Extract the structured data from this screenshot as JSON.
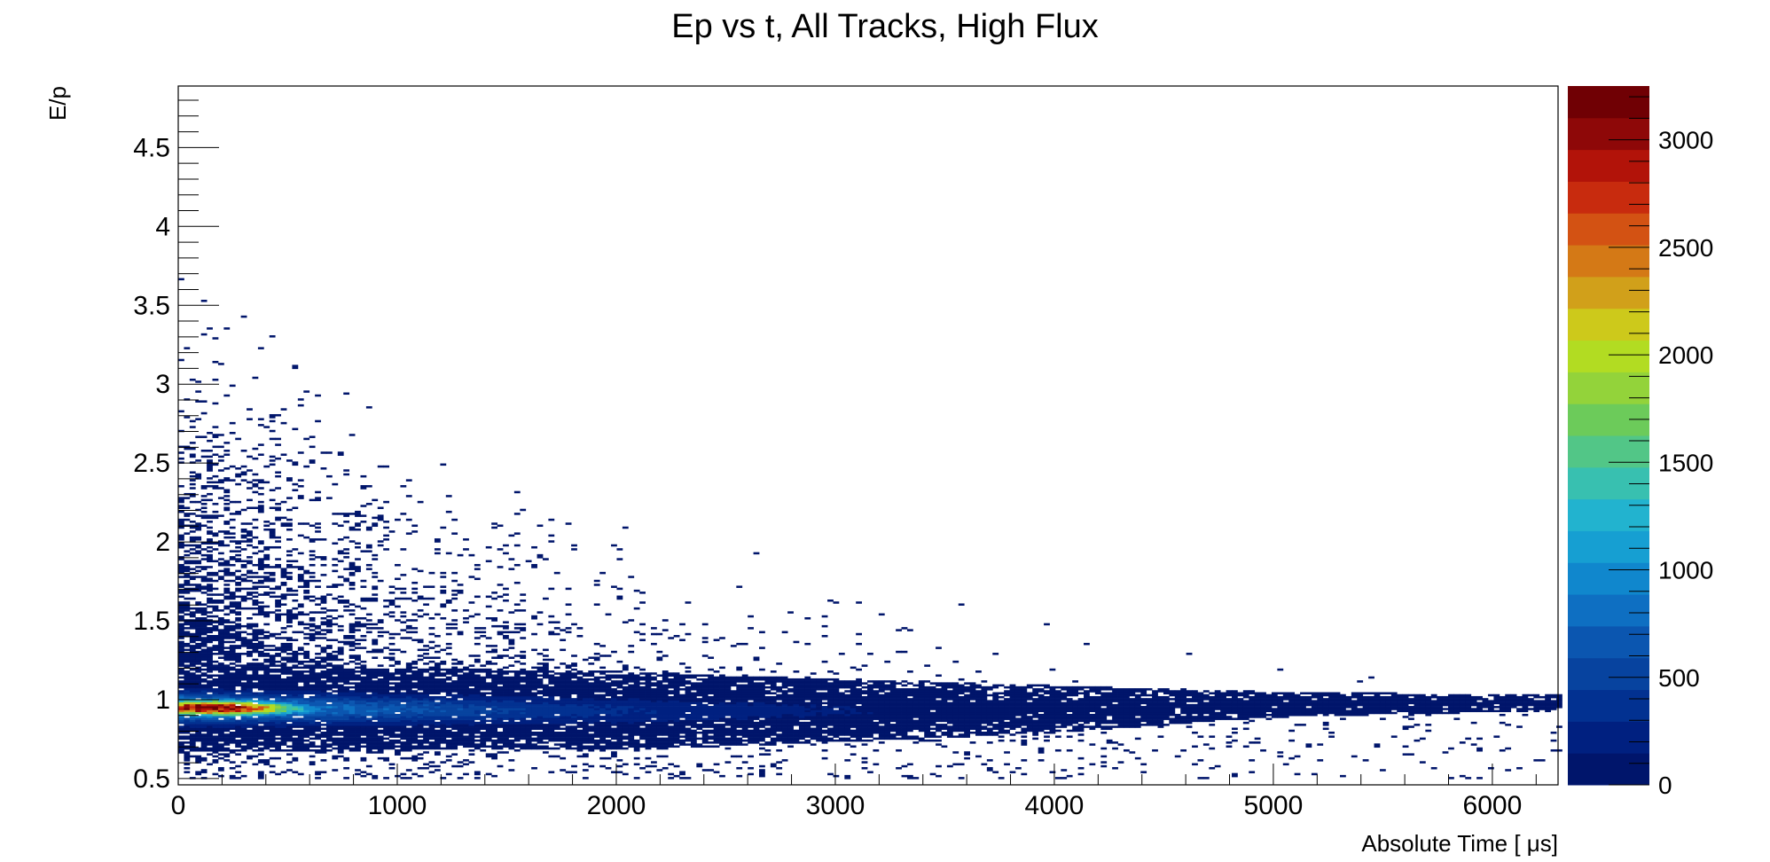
{
  "chart_data": {
    "type": "heatmap",
    "title": "Ep vs t, All Tracks, High Flux",
    "xlabel": "Absolute Time [ μs]",
    "ylabel": "E/p",
    "xlim": [
      0,
      6300
    ],
    "ylim": [
      0.46,
      4.89
    ],
    "x_ticks": [
      0,
      1000,
      2000,
      3000,
      4000,
      5000,
      6000
    ],
    "y_ticks": [
      0.5,
      1,
      1.5,
      2,
      2.5,
      3,
      3.5,
      4,
      4.5
    ],
    "z_range": [
      0,
      3250
    ],
    "z_ticks": [
      0,
      500,
      1000,
      1500,
      2000,
      2500,
      3000
    ],
    "palette": [
      "#00156b",
      "#002080",
      "#023191",
      "#07439f",
      "#0b56b0",
      "#0e6fc2",
      "#1087cd",
      "#169fd2",
      "#22b3cf",
      "#38c0b0",
      "#52c687",
      "#6ccb5a",
      "#93d33a",
      "#b2dc22",
      "#cdc91b",
      "#d1a01a",
      "#d47916",
      "#d35213",
      "#c82b0e",
      "#b21309",
      "#8e0808",
      "#700004"
    ],
    "ridge": {
      "band_center": [
        [
          0,
          0.95
        ],
        [
          1000,
          0.94
        ],
        [
          2000,
          0.93
        ],
        [
          3000,
          0.93
        ],
        [
          4000,
          0.94
        ],
        [
          5000,
          0.97
        ],
        [
          6300,
          0.98
        ]
      ],
      "band_half_width": [
        [
          0,
          0.28
        ],
        [
          1000,
          0.26
        ],
        [
          2000,
          0.25
        ],
        [
          3000,
          0.2
        ],
        [
          4000,
          0.15
        ],
        [
          5000,
          0.08
        ],
        [
          6300,
          0.05
        ]
      ],
      "hot_spot": {
        "t": 150,
        "ep": 0.95,
        "peak": 3200
      }
    },
    "grid": false,
    "legend": "none"
  }
}
